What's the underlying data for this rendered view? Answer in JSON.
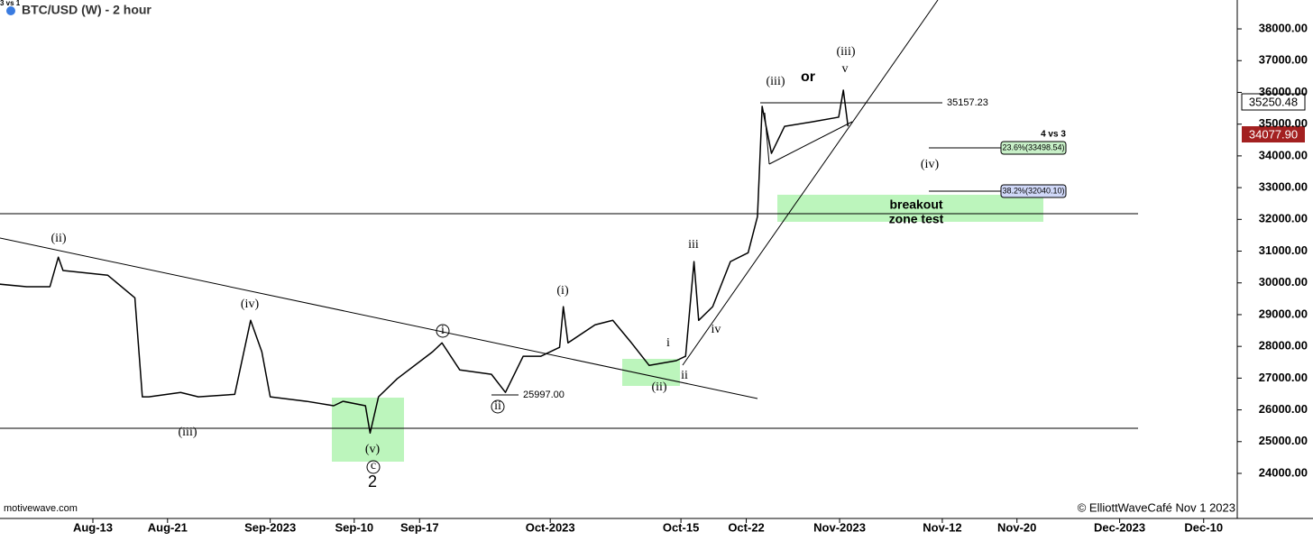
{
  "chart_data": {
    "type": "line",
    "title": "BTC/USD (W) - 2 hour",
    "corner_label": "3 vs 1",
    "watermark": "motivewave.com",
    "copyright": "© ElliottWaveCafé Nov 1  2023",
    "x": [
      215.0,
      217.9,
      220.4,
      221.3,
      221.8,
      226.6,
      229.5,
      230.3,
      231.0,
      234.4,
      236.3,
      240.2,
      241.9,
      243.1,
      244.0,
      247.9,
      250.8,
      251.8,
      254.2,
      254.7,
      255.6,
      257.6,
      261.4,
      262.4,
      264.3,
      267.7,
      269.2,
      271.1,
      273.0,
      275.0,
      275.4,
      275.9,
      278.8,
      280.7,
      282.7,
      284.6,
      287.5,
      288.5,
      289.4,
      289.9,
      291.4,
      293.3,
      295.2,
      296.2,
      296.7,
      297.7,
      299.1,
      302.0,
      304.9,
      305.4,
      305.9
    ],
    "series": [
      {
        "name": "BTC/USD",
        "color": "#000000",
        "values": [
          29960,
          29880,
          29880,
          30810,
          30390,
          30240,
          29530,
          26410,
          26410,
          26550,
          26410,
          26490,
          28820,
          27830,
          26410,
          26270,
          26130,
          26270,
          26130,
          25270,
          26410,
          26980,
          27830,
          28110,
          27260,
          27120,
          26550,
          27690,
          27690,
          27970,
          29250,
          28110,
          28680,
          28820,
          28110,
          27400,
          27550,
          27690,
          30670,
          28820,
          29250,
          30670,
          30950,
          32090,
          35560,
          34080,
          34930,
          35070,
          35220,
          36070,
          34930
        ]
      }
    ],
    "xlim": [
      215.05,
      347.6
    ],
    "xticks": [
      {
        "value": 225,
        "label": "Aug-13"
      },
      {
        "value": 233,
        "label": "Aug-21"
      },
      {
        "value": 244,
        "label": "Sep-2023"
      },
      {
        "value": 253,
        "label": "Sep-10"
      },
      {
        "value": 260,
        "label": "Sep-17"
      },
      {
        "value": 274,
        "label": "Oct-2023"
      },
      {
        "value": 288,
        "label": "Oct-15"
      },
      {
        "value": 295,
        "label": "Oct-22"
      },
      {
        "value": 305,
        "label": "Nov-2023"
      },
      {
        "value": 316,
        "label": "Nov-12"
      },
      {
        "value": 324,
        "label": "Nov-20"
      },
      {
        "value": 335,
        "label": "Dec-2023"
      },
      {
        "value": 344,
        "label": "Dec-10"
      }
    ],
    "ylim": [
      22580,
      38910
    ],
    "yticks": [
      {
        "value": 24000,
        "label": "24000.00"
      },
      {
        "value": 25000,
        "label": "25000.00"
      },
      {
        "value": 26000,
        "label": "26000.00"
      },
      {
        "value": 27000,
        "label": "27000.00"
      },
      {
        "value": 28000,
        "label": "28000.00"
      },
      {
        "value": 29000,
        "label": "29000.00"
      },
      {
        "value": 30000,
        "label": "30000.00"
      },
      {
        "value": 31000,
        "label": "31000.00"
      },
      {
        "value": 32000,
        "label": "32000.00"
      },
      {
        "value": 33000,
        "label": "33000.00"
      },
      {
        "value": 34000,
        "label": "34000.00"
      },
      {
        "value": 35000,
        "label": "35000.00"
      },
      {
        "value": 36000,
        "label": "36000.00"
      },
      {
        "value": 37000,
        "label": "37000.00"
      },
      {
        "value": 38000,
        "label": "38000.00"
      }
    ],
    "price_tags": [
      "35250.48",
      "34077.90"
    ],
    "annotations": [
      "(ii)",
      "(iv)",
      "(iii)",
      "(v)",
      "c",
      "2",
      "i",
      "ii",
      "25997.00",
      "(i)",
      "(ii)",
      "i",
      "ii",
      "iii",
      "iv",
      "(iii)",
      "or",
      "(iii)",
      "v",
      "35157.23",
      "4 vs 3",
      "23.6%(33498.54)",
      "(iv)",
      "38.2%(32040.10)",
      "breakout",
      "zone test"
    ]
  }
}
